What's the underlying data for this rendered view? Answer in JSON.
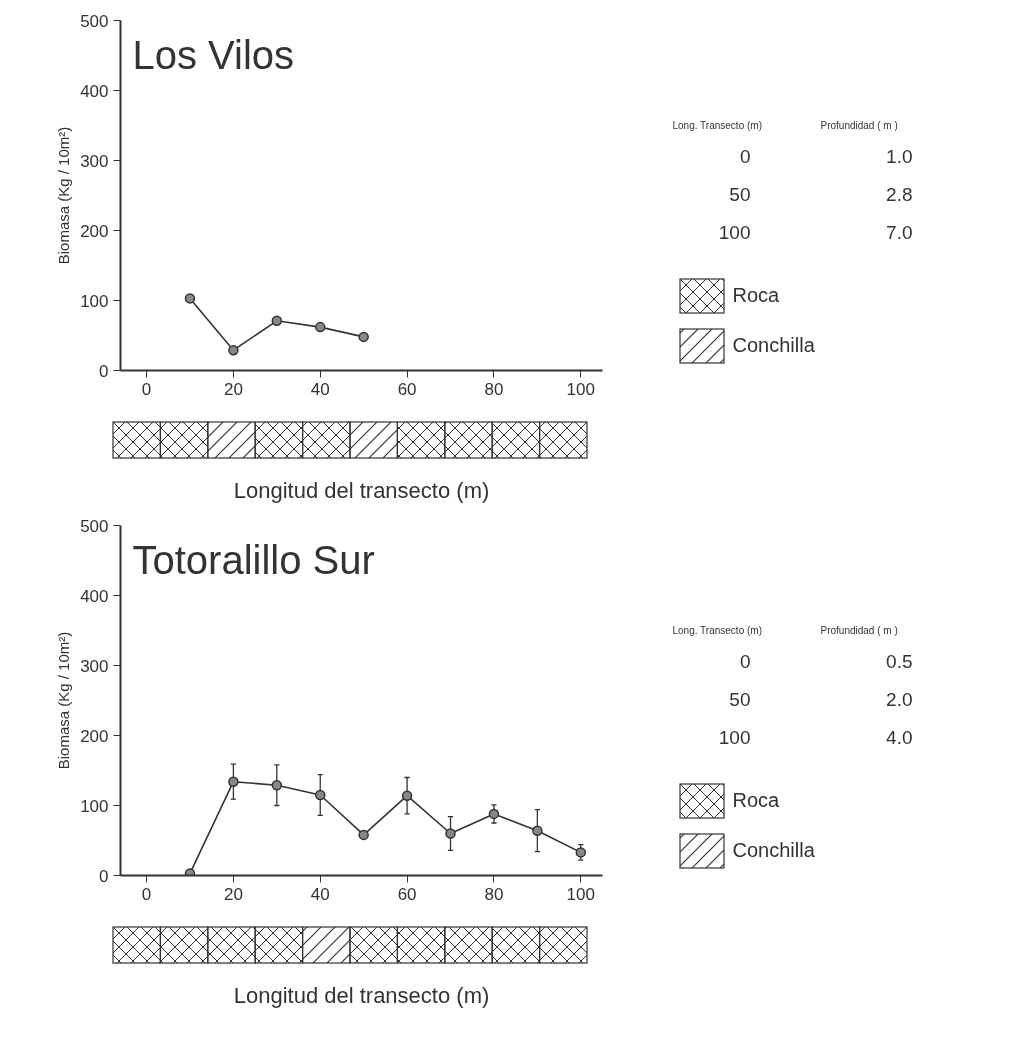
{
  "chart_data": [
    {
      "type": "line",
      "title": "Los Vilos",
      "xlabel": "Longitud del transecto (m)",
      "ylabel": "Biomasa (Kg / 10m²)",
      "x": [
        10,
        20,
        30,
        40,
        50
      ],
      "values": [
        103,
        29,
        71,
        62,
        48
      ],
      "color": "#333333",
      "marker": "circle",
      "xlim": [
        -6,
        105
      ],
      "ylim": [
        0,
        500
      ],
      "xticks": [
        0,
        20,
        40,
        60,
        80,
        100
      ],
      "yticks": [
        0,
        100,
        200,
        300,
        400,
        500
      ],
      "grid": false
    },
    {
      "type": "other",
      "annotations": [
        "Long. Transecto (m)",
        "Profundidad ( m )",
        "0",
        "1.0",
        "50",
        "2.8",
        "100",
        "7.0",
        "Roca",
        "Conchilla"
      ]
    },
    {
      "type": "line",
      "title": "Totoralillo Sur",
      "xlabel": "Longitud del transecto (m)",
      "ylabel": "Biomasa (Kg / 10m²)",
      "x": [
        10,
        20,
        30,
        40,
        50,
        60,
        70,
        80,
        90,
        100
      ],
      "values": [
        3,
        134,
        129,
        115,
        58,
        114,
        60,
        88,
        64,
        33
      ],
      "errors": [
        null,
        25,
        29,
        29,
        5,
        26,
        24,
        13,
        30,
        11
      ],
      "color": "#333333",
      "marker": "circle",
      "xlim": [
        -6,
        105
      ],
      "ylim": [
        0,
        500
      ],
      "xticks": [
        0,
        20,
        40,
        60,
        80,
        100
      ],
      "yticks": [
        0,
        100,
        200,
        300,
        400,
        500
      ],
      "grid": false
    },
    {
      "type": "other",
      "annotations": [
        "Long. Transecto (m)",
        "Profundidad ( m )",
        "0",
        "0.5",
        "50",
        "2.0",
        "100",
        "4.0",
        "Roca",
        "Conchilla"
      ]
    }
  ]
}
